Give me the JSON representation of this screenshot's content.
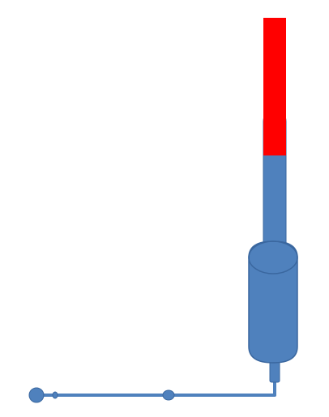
{
  "diagram": {
    "colors": {
      "body": "#4f81bd",
      "outline": "#3a679f",
      "highlight": "#ff0000",
      "background": "#ffffff"
    },
    "parts": [
      {
        "name": "tube",
        "icon": "tube-icon"
      },
      {
        "name": "red-indicator",
        "icon": "indicator-icon"
      },
      {
        "name": "cylinder-vessel",
        "icon": "cylinder-icon"
      },
      {
        "name": "outlet-pipe",
        "icon": "pipe-icon"
      },
      {
        "name": "end-node",
        "icon": "node-icon"
      }
    ]
  }
}
